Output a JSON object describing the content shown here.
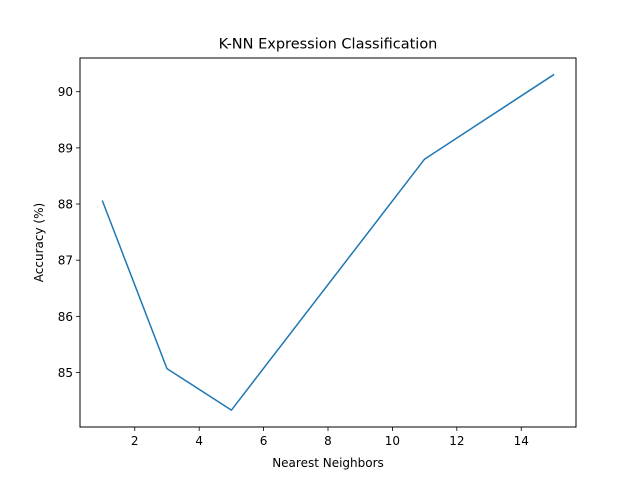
{
  "chart_data": {
    "type": "line",
    "title": "K-NN Expression Classification",
    "xlabel": "Nearest Neighbors",
    "ylabel": "Accuracy (%)",
    "xlim": [
      0.3,
      15.7
    ],
    "ylim": [
      84.03,
      90.6
    ],
    "xticks": [
      2,
      4,
      6,
      8,
      10,
      12,
      14
    ],
    "yticks": [
      85,
      86,
      87,
      88,
      89,
      90
    ],
    "grid": false,
    "series": [
      {
        "color": "#1f77b4",
        "x": [
          1,
          3,
          5,
          11,
          15
        ],
        "y": [
          88.05,
          85.07,
          84.33,
          88.8,
          90.3
        ]
      }
    ]
  }
}
